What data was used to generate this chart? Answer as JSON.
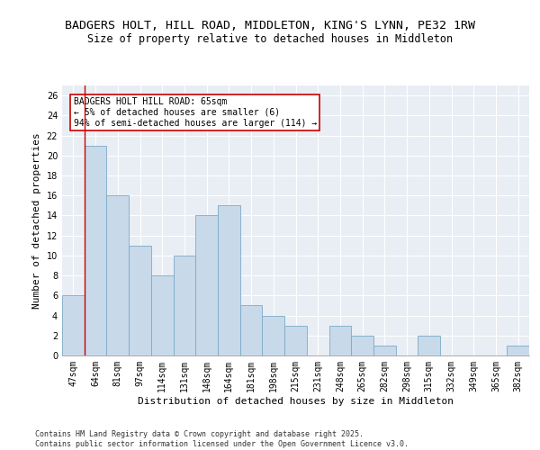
{
  "title1": "BADGERS HOLT, HILL ROAD, MIDDLETON, KING'S LYNN, PE32 1RW",
  "title2": "Size of property relative to detached houses in Middleton",
  "xlabel": "Distribution of detached houses by size in Middleton",
  "ylabel": "Number of detached properties",
  "categories": [
    "47sqm",
    "64sqm",
    "81sqm",
    "97sqm",
    "114sqm",
    "131sqm",
    "148sqm",
    "164sqm",
    "181sqm",
    "198sqm",
    "215sqm",
    "231sqm",
    "248sqm",
    "265sqm",
    "282sqm",
    "298sqm",
    "315sqm",
    "332sqm",
    "349sqm",
    "365sqm",
    "382sqm"
  ],
  "values": [
    6,
    21,
    16,
    11,
    8,
    10,
    14,
    15,
    5,
    4,
    3,
    0,
    3,
    2,
    1,
    0,
    2,
    0,
    0,
    0,
    1
  ],
  "bar_color": "#c8d9ea",
  "bar_edge_color": "#7aaac8",
  "annotation_box_text": "BADGERS HOLT HILL ROAD: 65sqm\n← 5% of detached houses are smaller (6)\n94% of semi-detached houses are larger (114) →",
  "vline_color": "#cc0000",
  "vline_x": 0.5,
  "ylim": [
    0,
    27
  ],
  "yticks": [
    0,
    2,
    4,
    6,
    8,
    10,
    12,
    14,
    16,
    18,
    20,
    22,
    24,
    26
  ],
  "background_color": "#e8eef4",
  "grid_color": "#ffffff",
  "footer_text": "Contains HM Land Registry data © Crown copyright and database right 2025.\nContains public sector information licensed under the Open Government Licence v3.0.",
  "title_fontsize": 9.5,
  "subtitle_fontsize": 8.5,
  "axis_label_fontsize": 8,
  "tick_fontsize": 7,
  "annotation_fontsize": 7,
  "footer_fontsize": 6
}
